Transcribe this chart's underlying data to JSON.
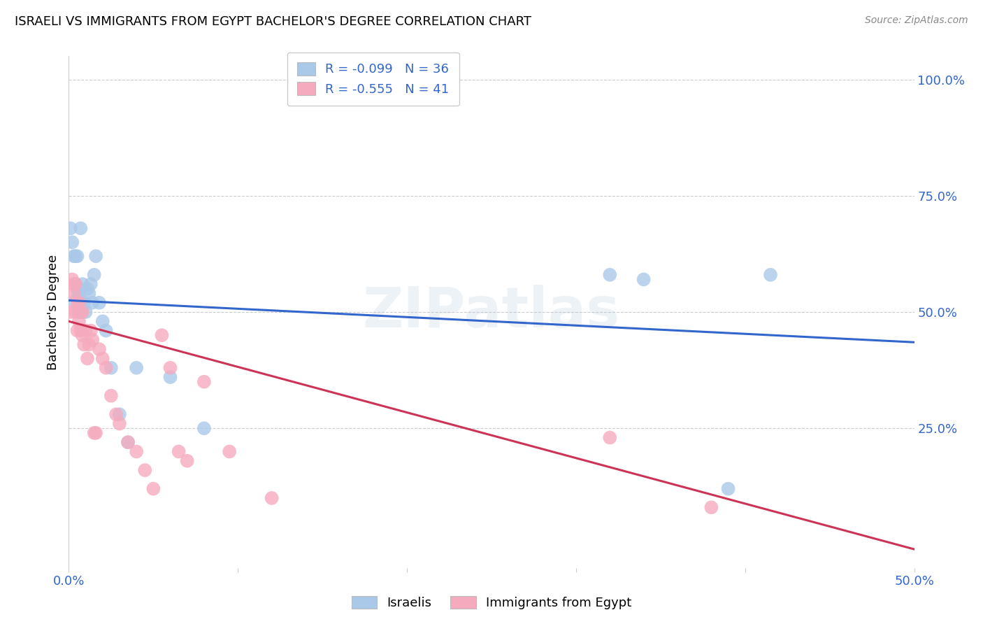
{
  "title": "ISRAELI VS IMMIGRANTS FROM EGYPT BACHELOR'S DEGREE CORRELATION CHART",
  "source": "Source: ZipAtlas.com",
  "ylabel": "Bachelor's Degree",
  "ytick_labels": [
    "100.0%",
    "75.0%",
    "50.0%",
    "25.0%"
  ],
  "ytick_values": [
    1.0,
    0.75,
    0.5,
    0.25
  ],
  "xmin": 0.0,
  "xmax": 0.5,
  "ymin": -0.05,
  "ymax": 1.05,
  "legend_r_israeli": "-0.099",
  "legend_n_israeli": "36",
  "legend_r_egypt": "-0.555",
  "legend_n_egypt": "41",
  "israeli_color": "#aac8e8",
  "egypt_color": "#f5aabe",
  "israeli_line_color": "#3366cc",
  "egypt_line_color": "#cc3355",
  "israeli_x": [
    0.001,
    0.002,
    0.003,
    0.003,
    0.004,
    0.004,
    0.005,
    0.005,
    0.005,
    0.006,
    0.006,
    0.007,
    0.007,
    0.008,
    0.008,
    0.009,
    0.01,
    0.011,
    0.012,
    0.013,
    0.014,
    0.015,
    0.016,
    0.018,
    0.02,
    0.022,
    0.025,
    0.03,
    0.035,
    0.04,
    0.06,
    0.08,
    0.32,
    0.34,
    0.39,
    0.415
  ],
  "israeli_y": [
    0.68,
    0.65,
    0.52,
    0.62,
    0.56,
    0.62,
    0.53,
    0.55,
    0.62,
    0.5,
    0.54,
    0.52,
    0.68,
    0.5,
    0.56,
    0.52,
    0.5,
    0.55,
    0.54,
    0.56,
    0.52,
    0.58,
    0.62,
    0.52,
    0.48,
    0.46,
    0.38,
    0.28,
    0.22,
    0.38,
    0.36,
    0.25,
    0.58,
    0.57,
    0.12,
    0.58
  ],
  "egypt_x": [
    0.001,
    0.002,
    0.003,
    0.003,
    0.004,
    0.004,
    0.005,
    0.005,
    0.006,
    0.006,
    0.007,
    0.007,
    0.008,
    0.008,
    0.009,
    0.01,
    0.011,
    0.012,
    0.013,
    0.014,
    0.015,
    0.016,
    0.018,
    0.02,
    0.022,
    0.025,
    0.028,
    0.03,
    0.035,
    0.04,
    0.045,
    0.05,
    0.055,
    0.06,
    0.065,
    0.07,
    0.08,
    0.095,
    0.12,
    0.32,
    0.38
  ],
  "egypt_y": [
    0.5,
    0.57,
    0.54,
    0.56,
    0.5,
    0.56,
    0.46,
    0.52,
    0.48,
    0.52,
    0.46,
    0.5,
    0.45,
    0.5,
    0.43,
    0.46,
    0.4,
    0.43,
    0.46,
    0.44,
    0.24,
    0.24,
    0.42,
    0.4,
    0.38,
    0.32,
    0.28,
    0.26,
    0.22,
    0.2,
    0.16,
    0.12,
    0.45,
    0.38,
    0.2,
    0.18,
    0.35,
    0.2,
    0.1,
    0.23,
    0.08
  ]
}
